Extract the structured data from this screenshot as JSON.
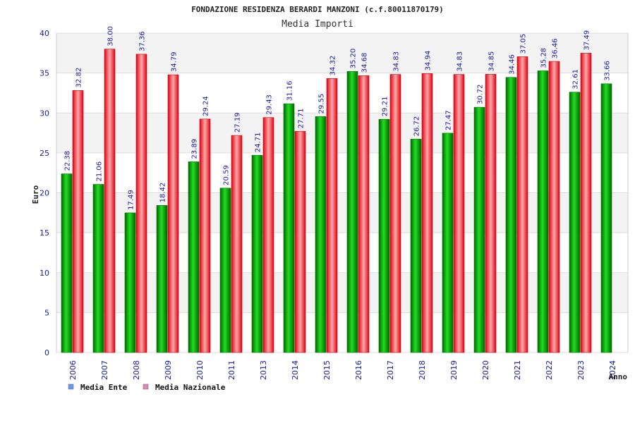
{
  "chart_data": {
    "type": "bar",
    "title": "FONDAZIONE RESIDENZA BERARDI MANZONI (c.f.80011870179)",
    "subtitle": "Media Importi",
    "xlabel": "Anno",
    "ylabel": "Euro",
    "ylim": [
      0,
      40
    ],
    "yticks": [
      0,
      5,
      10,
      15,
      20,
      25,
      30,
      35,
      40
    ],
    "grid": true,
    "legend_position": "bottom-left",
    "categories": [
      "2006",
      "2007",
      "2008",
      "2009",
      "2010",
      "2011",
      "2013",
      "2014",
      "2015",
      "2016",
      "2017",
      "2018",
      "2019",
      "2020",
      "2021",
      "2022",
      "2023",
      "2024"
    ],
    "series": [
      {
        "name": "Media Ente",
        "color": "#00aa00",
        "legend_color": "#6699ee",
        "values": [
          22.38,
          21.06,
          17.49,
          18.42,
          23.89,
          20.59,
          24.71,
          31.16,
          29.55,
          35.2,
          29.21,
          26.72,
          27.47,
          30.72,
          34.46,
          35.28,
          32.61,
          33.66
        ],
        "labels": [
          "22.38",
          "21.06",
          "17.49",
          "18.42",
          "23.89",
          "20.59",
          "24.71",
          "31.16",
          "29.55",
          "35.20",
          "29.21",
          "26.72",
          "27.47",
          "30.72",
          "34.46",
          "35.28",
          "32.61",
          "33.66"
        ]
      },
      {
        "name": "Media Nazionale",
        "color": "#ee1122",
        "legend_color": "#dd88bb",
        "values": [
          32.82,
          38.0,
          37.36,
          34.79,
          29.24,
          27.19,
          29.43,
          27.71,
          34.32,
          34.68,
          34.83,
          34.94,
          34.83,
          34.85,
          37.05,
          36.46,
          37.49,
          null
        ],
        "labels": [
          "32.82",
          "38.00",
          "37.36",
          "34.79",
          "29.24",
          "27.19",
          "29.43",
          "27.71",
          "34.32",
          "34.68",
          "34.83",
          "34.94",
          "34.83",
          "34.85",
          "37.05",
          "36.46",
          "37.49",
          null
        ]
      }
    ]
  }
}
